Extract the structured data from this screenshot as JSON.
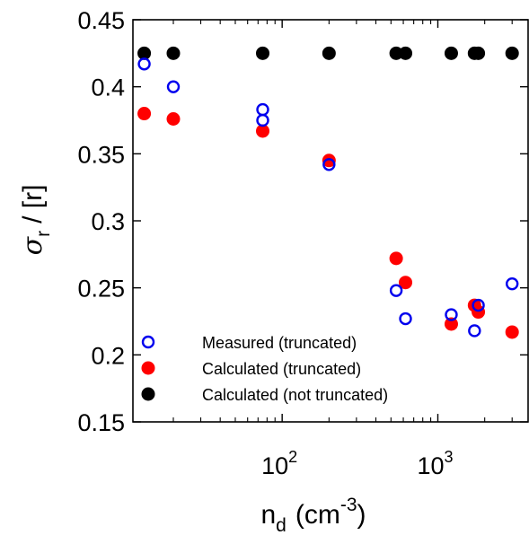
{
  "chart_data": {
    "type": "scatter",
    "x_scale": "log",
    "xlabel": "n",
    "xlabel_subscript": "d",
    "xlabel_units": "(cm",
    "xlabel_units_sup": "-3",
    "xlabel_units_close": ")",
    "ylabel_symbol": "σ",
    "ylabel_subscript": "r",
    "ylabel_rest": "/ [r]",
    "xlim": [
      11,
      3800
    ],
    "ylim": [
      0.15,
      0.45
    ],
    "yticks": [
      "0.15",
      "0.2",
      "0.25",
      "0.3",
      "0.35",
      "0.4",
      "0.45"
    ],
    "xticks": [
      {
        "base": "10",
        "exp": "2",
        "value": 100
      },
      {
        "base": "10",
        "exp": "3",
        "value": 1000
      }
    ],
    "grid": false,
    "legend_position": "bottom-left",
    "series": [
      {
        "name": "Measured (truncated)",
        "marker": "open-circle",
        "color": "#0000ee",
        "points": [
          {
            "x": 13,
            "y": 0.417
          },
          {
            "x": 20,
            "y": 0.4
          },
          {
            "x": 75,
            "y": 0.383
          },
          {
            "x": 75,
            "y": 0.375
          },
          {
            "x": 200,
            "y": 0.342
          },
          {
            "x": 540,
            "y": 0.248
          },
          {
            "x": 620,
            "y": 0.227
          },
          {
            "x": 1220,
            "y": 0.23
          },
          {
            "x": 1720,
            "y": 0.218
          },
          {
            "x": 1820,
            "y": 0.237
          },
          {
            "x": 3000,
            "y": 0.253
          }
        ]
      },
      {
        "name": "Calculated (truncated)",
        "marker": "filled-circle",
        "color": "#ff0000",
        "points": [
          {
            "x": 13,
            "y": 0.38
          },
          {
            "x": 20,
            "y": 0.376
          },
          {
            "x": 75,
            "y": 0.367
          },
          {
            "x": 200,
            "y": 0.345
          },
          {
            "x": 540,
            "y": 0.272
          },
          {
            "x": 620,
            "y": 0.254
          },
          {
            "x": 1220,
            "y": 0.223
          },
          {
            "x": 1720,
            "y": 0.237
          },
          {
            "x": 1820,
            "y": 0.232
          },
          {
            "x": 3000,
            "y": 0.217
          }
        ]
      },
      {
        "name": "Calculated (not truncated)",
        "marker": "filled-circle",
        "color": "#000000",
        "points": [
          {
            "x": 13,
            "y": 0.425
          },
          {
            "x": 20,
            "y": 0.425
          },
          {
            "x": 75,
            "y": 0.425
          },
          {
            "x": 200,
            "y": 0.425
          },
          {
            "x": 540,
            "y": 0.425
          },
          {
            "x": 620,
            "y": 0.425
          },
          {
            "x": 1220,
            "y": 0.425
          },
          {
            "x": 1720,
            "y": 0.425
          },
          {
            "x": 1820,
            "y": 0.425
          },
          {
            "x": 3000,
            "y": 0.425
          }
        ]
      }
    ]
  }
}
